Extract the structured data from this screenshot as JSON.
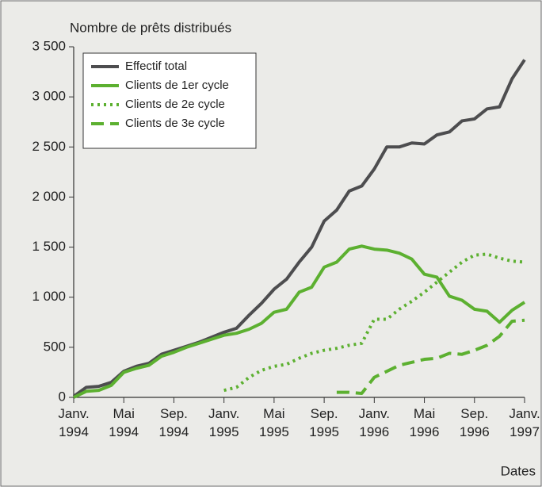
{
  "chart_data": {
    "type": "line",
    "y_label": "Nombre de prêts distribués",
    "x_label": "Dates",
    "categories": [
      "Janv. 1994",
      null,
      null,
      null,
      "Mai 1994",
      null,
      null,
      null,
      "Sep. 1994",
      null,
      null,
      null,
      "Janv. 1995",
      null,
      null,
      null,
      "Mai 1995",
      null,
      null,
      null,
      "Sep. 1995",
      null,
      null,
      null,
      "Janv. 1996",
      null,
      null,
      null,
      "Mai 1996",
      null,
      null,
      null,
      "Sep. 1996",
      null,
      null,
      null,
      "Janv. 1997"
    ],
    "series": [
      {
        "name": "Effectif total",
        "color": "#4d4d4f",
        "dash": "solid",
        "values": [
          10,
          100,
          110,
          150,
          260,
          310,
          340,
          430,
          470,
          510,
          550,
          600,
          650,
          690,
          820,
          940,
          1080,
          1180,
          1350,
          1500,
          1760,
          1870,
          2060,
          2110,
          2280,
          2500,
          2500,
          2540,
          2530,
          2620,
          2650,
          2760,
          2780,
          2880,
          2900,
          3180,
          3370
        ]
      },
      {
        "name": "Clients de 1er cycle",
        "color": "#5cb030",
        "dash": "solid",
        "values": [
          0,
          60,
          70,
          120,
          250,
          290,
          320,
          410,
          450,
          500,
          540,
          580,
          620,
          640,
          680,
          740,
          850,
          880,
          1050,
          1100,
          1300,
          1350,
          1480,
          1510,
          1480,
          1470,
          1440,
          1380,
          1230,
          1200,
          1010,
          970,
          880,
          860,
          750,
          870,
          950
        ]
      },
      {
        "name": "Clients de 2e cycle",
        "color": "#5cb030",
        "dash": "dotted",
        "values": [
          null,
          null,
          null,
          null,
          null,
          null,
          null,
          null,
          null,
          null,
          null,
          null,
          70,
          100,
          200,
          270,
          310,
          330,
          390,
          440,
          470,
          490,
          520,
          540,
          780,
          780,
          880,
          960,
          1050,
          1150,
          1250,
          1350,
          1420,
          1430,
          1390,
          1360,
          1350
        ]
      },
      {
        "name": "Clients de 3e cycle",
        "color": "#5cb030",
        "dash": "dashed",
        "values": [
          null,
          null,
          null,
          null,
          null,
          null,
          null,
          null,
          null,
          null,
          null,
          null,
          null,
          null,
          null,
          null,
          null,
          null,
          null,
          null,
          null,
          50,
          50,
          40,
          200,
          260,
          320,
          350,
          380,
          390,
          440,
          430,
          470,
          520,
          610,
          760,
          770
        ]
      }
    ],
    "ylim": [
      0,
      3500
    ],
    "yticks": [
      0,
      500,
      {
        "value": 1000,
        "label": "1 000"
      },
      {
        "value": 1500,
        "label": "1 500"
      },
      {
        "value": 2000,
        "label": "2 000"
      },
      {
        "value": 2500,
        "label": "2 500"
      },
      {
        "value": 3000,
        "label": "3 000"
      },
      {
        "value": 3500,
        "label": "3 500"
      }
    ],
    "grid": false
  }
}
